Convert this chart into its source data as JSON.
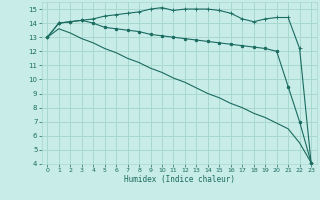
{
  "background_color": "#c8ece8",
  "grid_color": "#a8d8d0",
  "line_color": "#1a6b60",
  "xlabel": "Humidex (Indice chaleur)",
  "ylim": [
    4,
    15.5
  ],
  "xlim": [
    -0.5,
    23.5
  ],
  "yticks": [
    4,
    5,
    6,
    7,
    8,
    9,
    10,
    11,
    12,
    13,
    14,
    15
  ],
  "xticks": [
    0,
    1,
    2,
    3,
    4,
    5,
    6,
    7,
    8,
    9,
    10,
    11,
    12,
    13,
    14,
    15,
    16,
    17,
    18,
    19,
    20,
    21,
    22,
    23
  ],
  "line1_x": [
    0,
    1,
    2,
    3,
    4,
    5,
    6,
    7,
    8,
    9,
    10,
    11,
    12,
    13,
    14,
    15,
    16,
    17,
    18,
    19,
    20,
    21,
    22,
    23
  ],
  "line1_y": [
    13.0,
    14.0,
    14.1,
    14.2,
    14.3,
    14.5,
    14.6,
    14.7,
    14.8,
    15.0,
    15.1,
    14.9,
    15.0,
    15.0,
    15.0,
    14.9,
    14.7,
    14.3,
    14.1,
    14.3,
    14.4,
    14.4,
    12.2,
    4.1
  ],
  "line2_x": [
    0,
    1,
    2,
    3,
    4,
    5,
    6,
    7,
    8,
    9,
    10,
    11,
    12,
    13,
    14,
    15,
    16,
    17,
    18,
    19,
    20,
    21,
    22,
    23
  ],
  "line2_y": [
    13.0,
    14.0,
    14.1,
    14.2,
    14.0,
    13.7,
    13.6,
    13.5,
    13.4,
    13.2,
    13.1,
    13.0,
    12.9,
    12.8,
    12.7,
    12.6,
    12.5,
    12.4,
    12.3,
    12.2,
    12.0,
    9.5,
    7.0,
    4.1
  ],
  "line3_x": [
    0,
    1,
    2,
    3,
    4,
    5,
    6,
    7,
    8,
    9,
    10,
    11,
    12,
    13,
    14,
    15,
    16,
    17,
    18,
    19,
    20,
    21,
    22,
    23
  ],
  "line3_y": [
    13.0,
    13.6,
    13.3,
    12.9,
    12.6,
    12.2,
    11.9,
    11.5,
    11.2,
    10.8,
    10.5,
    10.1,
    9.8,
    9.4,
    9.0,
    8.7,
    8.3,
    8.0,
    7.6,
    7.3,
    6.9,
    6.5,
    5.5,
    4.1
  ]
}
